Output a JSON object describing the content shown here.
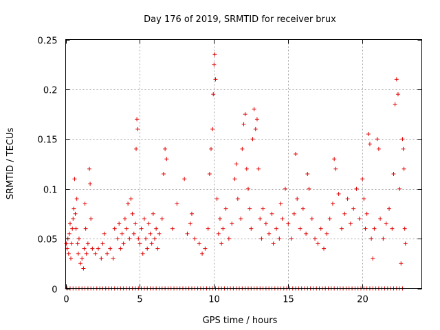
{
  "chart_data": {
    "type": "scatter",
    "title": "Day 176 of 2019, SRMTID for receiver brux",
    "xlabel": "GPS time / hours",
    "ylabel": "SRMTID / TECUs",
    "xlim": [
      0,
      24
    ],
    "ylim": [
      0,
      0.25
    ],
    "x_ticks": [
      0,
      5,
      10,
      15,
      20
    ],
    "x_tick_labels": [
      "0",
      "5",
      "10",
      "15",
      "20"
    ],
    "y_ticks": [
      0,
      0.05,
      0.1,
      0.15,
      0.2,
      0.25
    ],
    "y_tick_labels": [
      "0",
      "0.05",
      "0.1",
      "0.15",
      "0.2",
      "0.25"
    ],
    "grid": true,
    "marker": "+",
    "color": "#e00000",
    "series": [
      {
        "name": "SRMTID",
        "points": [
          [
            0.05,
            0.045
          ],
          [
            0.1,
            0.04
          ],
          [
            0.15,
            0.05
          ],
          [
            0.2,
            0.035
          ],
          [
            0.25,
            0.055
          ],
          [
            0.3,
            0.065
          ],
          [
            0.35,
            0.03
          ],
          [
            0.4,
            0.045
          ],
          [
            0.45,
            0.06
          ],
          [
            0.5,
            0.07
          ],
          [
            0.55,
            0.08
          ],
          [
            0.6,
            0.11
          ],
          [
            0.65,
            0.075
          ],
          [
            0.7,
            0.06
          ],
          [
            0.75,
            0.09
          ],
          [
            0.8,
            0.045
          ],
          [
            0.85,
            0.035
          ],
          [
            0.9,
            0.05
          ],
          [
            1.0,
            0.025
          ],
          [
            1.1,
            0.03
          ],
          [
            1.2,
            0.02
          ],
          [
            1.25,
            0.04
          ],
          [
            1.3,
            0.085
          ],
          [
            1.35,
            0.06
          ],
          [
            1.4,
            0.035
          ],
          [
            1.5,
            0.045
          ],
          [
            1.6,
            0.12
          ],
          [
            1.65,
            0.105
          ],
          [
            1.7,
            0.07
          ],
          [
            1.8,
            0.04
          ],
          [
            2.0,
            0.035
          ],
          [
            2.2,
            0.04
          ],
          [
            2.4,
            0.03
          ],
          [
            2.5,
            0.045
          ],
          [
            2.6,
            0.055
          ],
          [
            2.8,
            0.035
          ],
          [
            3.0,
            0.04
          ],
          [
            3.2,
            0.03
          ],
          [
            3.3,
            0.06
          ],
          [
            3.5,
            0.05
          ],
          [
            3.6,
            0.065
          ],
          [
            3.7,
            0.04
          ],
          [
            3.8,
            0.055
          ],
          [
            3.9,
            0.045
          ],
          [
            4.0,
            0.07
          ],
          [
            4.1,
            0.06
          ],
          [
            4.2,
            0.085
          ],
          [
            4.3,
            0.05
          ],
          [
            4.4,
            0.09
          ],
          [
            4.5,
            0.075
          ],
          [
            4.6,
            0.055
          ],
          [
            4.7,
            0.065
          ],
          [
            4.75,
            0.14
          ],
          [
            4.8,
            0.17
          ],
          [
            4.85,
            0.16
          ],
          [
            4.9,
            0.05
          ],
          [
            5.0,
            0.045
          ],
          [
            5.1,
            0.06
          ],
          [
            5.2,
            0.035
          ],
          [
            5.3,
            0.07
          ],
          [
            5.4,
            0.05
          ],
          [
            5.5,
            0.04
          ],
          [
            5.6,
            0.065
          ],
          [
            5.7,
            0.055
          ],
          [
            5.8,
            0.045
          ],
          [
            5.9,
            0.075
          ],
          [
            6.0,
            0.05
          ],
          [
            6.1,
            0.06
          ],
          [
            6.2,
            0.04
          ],
          [
            6.3,
            0.055
          ],
          [
            6.5,
            0.07
          ],
          [
            6.6,
            0.115
          ],
          [
            6.7,
            0.14
          ],
          [
            6.8,
            0.13
          ],
          [
            7.2,
            0.06
          ],
          [
            7.5,
            0.085
          ],
          [
            8.0,
            0.11
          ],
          [
            8.2,
            0.055
          ],
          [
            8.4,
            0.065
          ],
          [
            8.5,
            0.075
          ],
          [
            8.7,
            0.05
          ],
          [
            9.0,
            0.045
          ],
          [
            9.2,
            0.035
          ],
          [
            9.4,
            0.04
          ],
          [
            9.6,
            0.06
          ],
          [
            9.7,
            0.115
          ],
          [
            9.8,
            0.14
          ],
          [
            9.9,
            0.16
          ],
          [
            9.95,
            0.195
          ],
          [
            10.0,
            0.225
          ],
          [
            10.05,
            0.235
          ],
          [
            10.1,
            0.21
          ],
          [
            10.2,
            0.09
          ],
          [
            10.3,
            0.055
          ],
          [
            10.4,
            0.07
          ],
          [
            10.5,
            0.045
          ],
          [
            10.6,
            0.06
          ],
          [
            10.8,
            0.08
          ],
          [
            11.0,
            0.05
          ],
          [
            11.2,
            0.065
          ],
          [
            11.4,
            0.11
          ],
          [
            11.5,
            0.125
          ],
          [
            11.6,
            0.09
          ],
          [
            11.8,
            0.07
          ],
          [
            11.9,
            0.14
          ],
          [
            12.0,
            0.165
          ],
          [
            12.1,
            0.175
          ],
          [
            12.2,
            0.12
          ],
          [
            12.3,
            0.1
          ],
          [
            12.4,
            0.08
          ],
          [
            12.5,
            0.06
          ],
          [
            12.6,
            0.15
          ],
          [
            12.7,
            0.18
          ],
          [
            12.8,
            0.16
          ],
          [
            12.9,
            0.17
          ],
          [
            13.0,
            0.12
          ],
          [
            13.1,
            0.07
          ],
          [
            13.2,
            0.05
          ],
          [
            13.3,
            0.08
          ],
          [
            13.5,
            0.065
          ],
          [
            13.7,
            0.055
          ],
          [
            13.9,
            0.075
          ],
          [
            14.0,
            0.045
          ],
          [
            14.2,
            0.06
          ],
          [
            14.4,
            0.05
          ],
          [
            14.5,
            0.085
          ],
          [
            14.6,
            0.07
          ],
          [
            14.8,
            0.1
          ],
          [
            15.0,
            0.065
          ],
          [
            15.2,
            0.05
          ],
          [
            15.4,
            0.075
          ],
          [
            15.5,
            0.135
          ],
          [
            15.6,
            0.09
          ],
          [
            15.8,
            0.06
          ],
          [
            16.0,
            0.08
          ],
          [
            16.2,
            0.055
          ],
          [
            16.3,
            0.115
          ],
          [
            16.4,
            0.1
          ],
          [
            16.6,
            0.07
          ],
          [
            16.8,
            0.05
          ],
          [
            17.0,
            0.045
          ],
          [
            17.2,
            0.06
          ],
          [
            17.4,
            0.04
          ],
          [
            17.6,
            0.055
          ],
          [
            17.8,
            0.07
          ],
          [
            18.0,
            0.085
          ],
          [
            18.1,
            0.13
          ],
          [
            18.2,
            0.12
          ],
          [
            18.4,
            0.095
          ],
          [
            18.6,
            0.06
          ],
          [
            18.8,
            0.075
          ],
          [
            19.0,
            0.09
          ],
          [
            19.2,
            0.065
          ],
          [
            19.4,
            0.08
          ],
          [
            19.6,
            0.1
          ],
          [
            19.8,
            0.07
          ],
          [
            20.0,
            0.11
          ],
          [
            20.1,
            0.09
          ],
          [
            20.2,
            0.06
          ],
          [
            20.3,
            0.075
          ],
          [
            20.4,
            0.155
          ],
          [
            20.5,
            0.145
          ],
          [
            20.6,
            0.05
          ],
          [
            20.7,
            0.03
          ],
          [
            20.8,
            0.06
          ],
          [
            21.0,
            0.15
          ],
          [
            21.1,
            0.14
          ],
          [
            21.2,
            0.07
          ],
          [
            21.4,
            0.05
          ],
          [
            21.6,
            0.065
          ],
          [
            21.8,
            0.08
          ],
          [
            22.0,
            0.06
          ],
          [
            22.1,
            0.115
          ],
          [
            22.2,
            0.185
          ],
          [
            22.3,
            0.21
          ],
          [
            22.4,
            0.195
          ],
          [
            22.5,
            0.1
          ],
          [
            22.6,
            0.025
          ],
          [
            22.7,
            0.15
          ],
          [
            22.75,
            0.14
          ],
          [
            22.8,
            0.12
          ],
          [
            22.85,
            0.06
          ],
          [
            22.9,
            0.045
          ]
        ]
      },
      {
        "name": "zero values",
        "points": [
          [
            0.1,
            0
          ],
          [
            0.3,
            0
          ],
          [
            0.5,
            0
          ],
          [
            0.7,
            0
          ],
          [
            0.9,
            0
          ],
          [
            1.1,
            0
          ],
          [
            1.3,
            0
          ],
          [
            1.5,
            0
          ],
          [
            1.7,
            0
          ],
          [
            1.9,
            0
          ],
          [
            2.1,
            0
          ],
          [
            2.3,
            0
          ],
          [
            2.5,
            0
          ],
          [
            2.7,
            0
          ],
          [
            2.9,
            0
          ],
          [
            3.1,
            0
          ],
          [
            3.3,
            0
          ],
          [
            3.5,
            0
          ],
          [
            3.7,
            0
          ],
          [
            3.9,
            0
          ],
          [
            4.1,
            0
          ],
          [
            4.3,
            0
          ],
          [
            4.5,
            0
          ],
          [
            4.7,
            0
          ],
          [
            4.9,
            0
          ],
          [
            5.1,
            0
          ],
          [
            5.3,
            0
          ],
          [
            5.5,
            0
          ],
          [
            5.7,
            0
          ],
          [
            5.9,
            0
          ],
          [
            6.1,
            0
          ],
          [
            6.3,
            0
          ],
          [
            6.5,
            0
          ],
          [
            6.7,
            0
          ],
          [
            6.9,
            0
          ],
          [
            7.1,
            0
          ],
          [
            7.3,
            0
          ],
          [
            7.5,
            0
          ],
          [
            7.7,
            0
          ],
          [
            7.9,
            0
          ],
          [
            8.1,
            0
          ],
          [
            8.3,
            0
          ],
          [
            8.5,
            0
          ],
          [
            8.7,
            0
          ],
          [
            8.9,
            0
          ],
          [
            9.1,
            0
          ],
          [
            9.3,
            0
          ],
          [
            9.5,
            0
          ],
          [
            9.7,
            0
          ],
          [
            9.9,
            0
          ],
          [
            10.1,
            0
          ],
          [
            10.3,
            0
          ],
          [
            10.5,
            0
          ],
          [
            10.7,
            0
          ],
          [
            10.9,
            0
          ],
          [
            11.1,
            0
          ],
          [
            11.3,
            0
          ],
          [
            11.5,
            0
          ],
          [
            11.7,
            0
          ],
          [
            11.9,
            0
          ],
          [
            12.1,
            0
          ],
          [
            12.3,
            0
          ],
          [
            12.5,
            0
          ],
          [
            12.7,
            0
          ],
          [
            12.9,
            0
          ],
          [
            13.1,
            0
          ],
          [
            13.3,
            0
          ],
          [
            13.5,
            0
          ],
          [
            13.7,
            0
          ],
          [
            13.9,
            0
          ],
          [
            14.1,
            0
          ],
          [
            14.3,
            0
          ],
          [
            14.5,
            0
          ],
          [
            14.7,
            0
          ],
          [
            14.9,
            0
          ],
          [
            15.1,
            0
          ],
          [
            15.3,
            0
          ],
          [
            15.5,
            0
          ],
          [
            15.7,
            0
          ],
          [
            15.9,
            0
          ],
          [
            16.1,
            0
          ],
          [
            16.3,
            0
          ],
          [
            16.5,
            0
          ],
          [
            16.7,
            0
          ],
          [
            16.9,
            0
          ],
          [
            17.1,
            0
          ],
          [
            17.3,
            0
          ],
          [
            17.5,
            0
          ],
          [
            17.7,
            0
          ],
          [
            17.9,
            0
          ],
          [
            18.1,
            0
          ],
          [
            18.3,
            0
          ],
          [
            18.5,
            0
          ],
          [
            18.7,
            0
          ],
          [
            18.9,
            0
          ],
          [
            19.1,
            0
          ],
          [
            19.3,
            0
          ],
          [
            19.5,
            0
          ],
          [
            19.7,
            0
          ],
          [
            19.9,
            0
          ],
          [
            20.1,
            0
          ],
          [
            20.3,
            0
          ],
          [
            20.5,
            0
          ],
          [
            20.7,
            0
          ],
          [
            20.9,
            0
          ],
          [
            21.1,
            0
          ],
          [
            21.3,
            0
          ],
          [
            21.5,
            0
          ],
          [
            21.7,
            0
          ],
          [
            21.9,
            0
          ],
          [
            22.1,
            0
          ],
          [
            22.3,
            0
          ],
          [
            22.5,
            0
          ],
          [
            22.7,
            0
          ]
        ]
      }
    ]
  }
}
